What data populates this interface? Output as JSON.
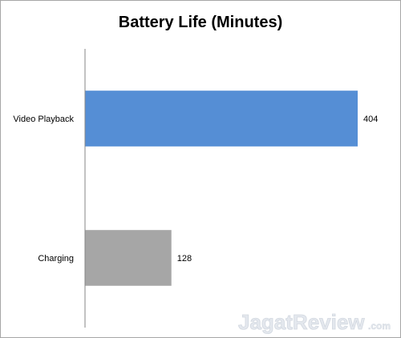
{
  "chart_data": {
    "type": "bar",
    "orientation": "horizontal",
    "title": "Battery Life (Minutes)",
    "categories": [
      "Video Playback",
      "Charging"
    ],
    "values": [
      404,
      128
    ],
    "colors": [
      "#558ED5",
      "#A6A6A6"
    ],
    "xlim": [
      0,
      404
    ],
    "grid": false,
    "legend": "none"
  },
  "watermark": {
    "main": "JagatReview",
    "suffix": ".com"
  }
}
